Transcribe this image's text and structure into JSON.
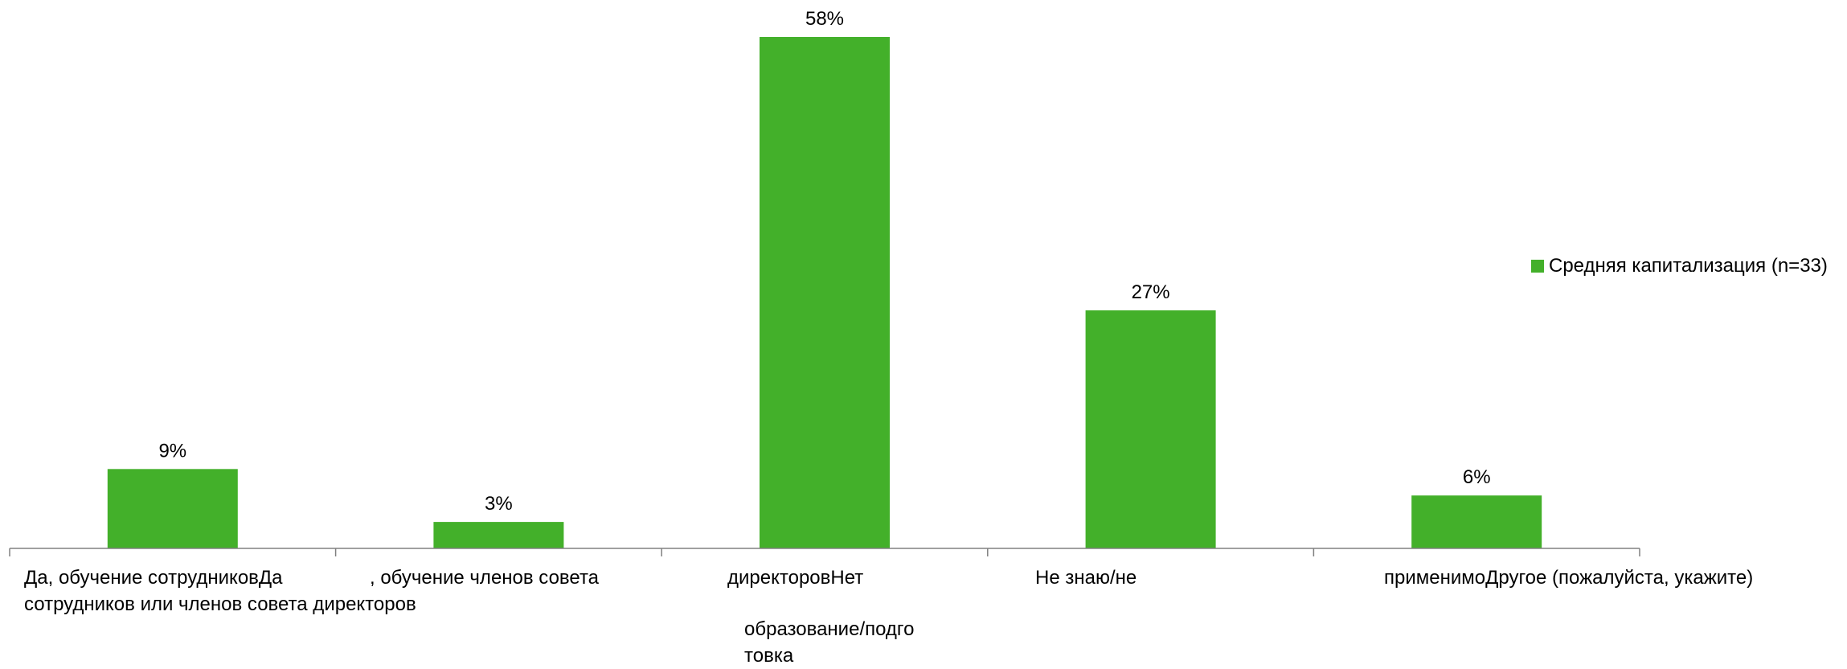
{
  "chart_data": {
    "type": "bar",
    "categories": [
      "Да, обучение сотрудниковДа сотрудников или членов совета директоров",
      ", обучение членов совета",
      "директоровНет образование/подготовка",
      "Не знаю/не",
      "применимоДругое (пожалуйста, укажите)"
    ],
    "series": [
      {
        "name": "Средняя капитализация (n=33)",
        "values": [
          9,
          3,
          58,
          27,
          6
        ]
      }
    ],
    "data_labels": [
      "9%",
      "3%",
      "58%",
      "27%",
      "6%"
    ],
    "ylim": [
      0,
      58
    ],
    "grid": false,
    "legend_position": "right",
    "bar_color": "#43B02A"
  },
  "category_label_lines": [
    [
      "Да, обучение сотрудниковДа",
      "сотрудников или членов совета директоров"
    ],
    [
      ", обучение членов совета"
    ],
    [
      "директоровНет"
    ],
    [
      "Не знаю/не"
    ],
    [
      "применимоДругое (пожалуйста, укажите)"
    ]
  ],
  "stray_label_lines": [
    "образование/подго",
    "товка"
  ],
  "legend": {
    "label": "Средняя капитализация (n=33)",
    "color": "#43B02A"
  }
}
